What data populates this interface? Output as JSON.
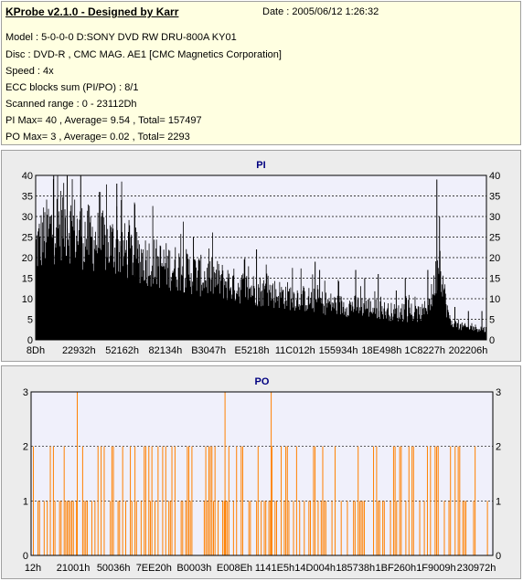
{
  "header": {
    "title": "KProbe v2.1.0 - Designed by Karr",
    "date": "Date : 2005/06/12 1:26:32",
    "lines": [
      "Model : 5-0-0-0 D:SONY    DVD RW DRU-800A  KY01",
      "Disc : DVD-R , CMC MAG. AE1 [CMC Magnetics Corporation]",
      "Speed : 4x",
      "ECC blocks sum (PI/PO) : 8/1",
      "Scanned range : 0 - 23112Dh",
      "PI Max= 40 , Average= 9.54 , Total= 157497",
      "PO Max= 3 , Average= 0.02 , Total= 2293"
    ]
  },
  "colors": {
    "background": "#ececec",
    "plot_background": "#f0f0fb",
    "title_color": "#000080",
    "pi_color": "#000000",
    "po_color": "#ff8000"
  },
  "chart_data": [
    {
      "type": "area",
      "title": "PI",
      "ylim": [
        0,
        40
      ],
      "yticks": [
        0,
        5,
        10,
        15,
        20,
        25,
        30,
        35,
        40
      ],
      "x_tick_labels": [
        "8Dh",
        "22932h",
        "52162h",
        "82134h",
        "B3047h",
        "E5218h",
        "11C012h",
        "155934h",
        "18E498h",
        "1C8227h",
        "202206h"
      ],
      "grid": true,
      "envelope": [
        [
          0,
          27
        ],
        [
          2,
          31
        ],
        [
          4,
          33
        ],
        [
          6,
          35
        ],
        [
          8,
          33
        ],
        [
          10,
          31
        ],
        [
          12,
          30
        ],
        [
          14,
          29
        ],
        [
          17,
          28
        ],
        [
          20,
          26
        ],
        [
          24,
          24
        ],
        [
          28,
          22
        ],
        [
          32,
          21
        ],
        [
          36,
          19
        ],
        [
          40,
          18
        ],
        [
          44,
          16
        ],
        [
          48,
          15
        ],
        [
          52,
          14
        ],
        [
          56,
          13
        ],
        [
          60,
          12
        ],
        [
          64,
          11
        ],
        [
          68,
          10
        ],
        [
          72,
          10
        ],
        [
          76,
          9
        ],
        [
          80,
          8
        ],
        [
          84,
          7.5
        ],
        [
          86,
          8
        ],
        [
          88,
          13
        ],
        [
          89,
          20
        ],
        [
          89.5,
          25
        ],
        [
          90,
          21
        ],
        [
          91,
          11
        ],
        [
          92,
          5
        ],
        [
          94,
          4
        ],
        [
          96,
          3.5
        ],
        [
          98,
          3.5
        ],
        [
          100,
          3
        ]
      ],
      "peaks": [
        [
          4,
          40
        ],
        [
          7,
          40
        ],
        [
          10,
          40
        ],
        [
          18,
          38
        ],
        [
          19,
          34
        ],
        [
          22,
          33
        ],
        [
          35,
          25
        ],
        [
          49,
          22
        ],
        [
          62,
          19
        ],
        [
          63,
          17
        ],
        [
          71,
          17
        ],
        [
          73,
          15
        ],
        [
          76,
          16
        ],
        [
          80,
          12
        ],
        [
          82,
          15
        ],
        [
          87,
          17
        ],
        [
          89,
          39
        ],
        [
          89.6,
          30
        ],
        [
          93,
          8
        ],
        [
          96,
          7
        ],
        [
          99,
          7
        ]
      ]
    },
    {
      "type": "bar",
      "title": "PO",
      "ylim": [
        0,
        3
      ],
      "yticks": [
        0,
        1,
        2,
        3
      ],
      "x_tick_labels": [
        "12h",
        "21001h",
        "50036h",
        "7EE20h",
        "B0003h",
        "E008Eh",
        "1141E5h",
        "14D004h",
        "185738h",
        "1BF260h",
        "1F9009h",
        "230972h"
      ],
      "grid": true,
      "spikes_at_3": [
        10,
        42,
        52
      ]
    }
  ]
}
